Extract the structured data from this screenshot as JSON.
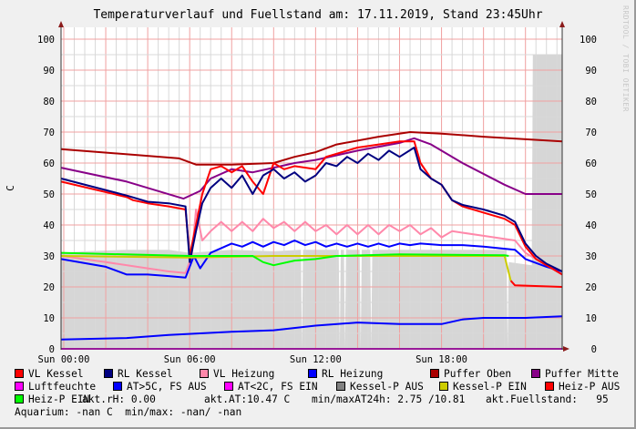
{
  "chart_data": {
    "type": "line",
    "title": "Temperaturverlauf und Fuellstand am: 17.11.2019, Stand 23:45Uhr",
    "ylabel": "C",
    "ylim": [
      0,
      100
    ],
    "xlim_hours": [
      -0.13,
      23.75
    ],
    "yticks": [
      0,
      10,
      20,
      30,
      40,
      50,
      60,
      70,
      80,
      90,
      100
    ],
    "xticks": [
      {
        "h": 0,
        "label": "Sun 00:00"
      },
      {
        "h": 6,
        "label": "Sun 06:00"
      },
      {
        "h": 12,
        "label": "Sun 12:00"
      },
      {
        "h": 18,
        "label": "Sun 18:00"
      }
    ],
    "grid": true,
    "watermark": "RRDTOOL / TOBI OETIKER",
    "area": {
      "name": "Kessel-P AUS",
      "color": "#d6d6d6",
      "points": [
        [
          -0.13,
          31
        ],
        [
          1,
          31.5
        ],
        [
          3,
          32
        ],
        [
          5,
          32
        ],
        [
          6,
          31
        ],
        [
          8,
          32
        ],
        [
          10,
          31.5
        ],
        [
          11.3,
          32
        ],
        [
          11.35,
          0
        ],
        [
          11.4,
          32
        ],
        [
          13.1,
          32
        ],
        [
          13.15,
          0
        ],
        [
          13.2,
          32
        ],
        [
          13.35,
          32
        ],
        [
          13.4,
          0
        ],
        [
          13.45,
          32
        ],
        [
          14.1,
          32
        ],
        [
          14.15,
          0
        ],
        [
          14.2,
          32
        ],
        [
          14.6,
          32
        ],
        [
          14.65,
          0
        ],
        [
          14.7,
          32
        ],
        [
          21.1,
          32
        ],
        [
          21.15,
          0
        ],
        [
          21.2,
          28
        ],
        [
          22.3,
          27
        ],
        [
          22.35,
          95
        ],
        [
          23.75,
          95
        ]
      ]
    },
    "series": [
      {
        "name": "Puffer Oben",
        "color": "#aa0000",
        "points": [
          [
            -0.13,
            64.5
          ],
          [
            5.5,
            61.5
          ],
          [
            6.3,
            59.5
          ],
          [
            8,
            59.5
          ],
          [
            10,
            60
          ],
          [
            11,
            62
          ],
          [
            12,
            63.5
          ],
          [
            13,
            66
          ],
          [
            15,
            68.5
          ],
          [
            16.5,
            70
          ],
          [
            18,
            69.5
          ],
          [
            20,
            68.5
          ],
          [
            23.75,
            67
          ]
        ]
      },
      {
        "name": "Puffer Mitte",
        "color": "#880088",
        "points": [
          [
            -0.13,
            58.5
          ],
          [
            3,
            54
          ],
          [
            5.7,
            48.5
          ],
          [
            6.5,
            51
          ],
          [
            7,
            55
          ],
          [
            8,
            58
          ],
          [
            9,
            57
          ],
          [
            10,
            58.5
          ],
          [
            11,
            60
          ],
          [
            12,
            61
          ],
          [
            13,
            62.5
          ],
          [
            14,
            64
          ],
          [
            16,
            66.5
          ],
          [
            16.7,
            68
          ],
          [
            17.5,
            66
          ],
          [
            19,
            60
          ],
          [
            21,
            53
          ],
          [
            22,
            50
          ],
          [
            23.75,
            50
          ]
        ]
      },
      {
        "name": "VL Heizung",
        "color": "#ff88aa",
        "points": [
          [
            -0.13,
            30
          ],
          [
            2,
            28
          ],
          [
            4,
            26
          ],
          [
            5,
            25
          ],
          [
            5.8,
            24.5
          ],
          [
            6.1,
            30
          ],
          [
            6.3,
            45
          ],
          [
            6.6,
            35
          ],
          [
            7,
            38
          ],
          [
            7.5,
            41
          ],
          [
            8,
            38
          ],
          [
            8.5,
            41
          ],
          [
            9,
            38
          ],
          [
            9.5,
            42
          ],
          [
            10,
            39
          ],
          [
            10.5,
            41
          ],
          [
            11,
            38
          ],
          [
            11.5,
            41
          ],
          [
            12,
            38
          ],
          [
            12.5,
            40
          ],
          [
            13,
            37
          ],
          [
            13.5,
            40
          ],
          [
            14,
            37
          ],
          [
            14.5,
            40
          ],
          [
            15,
            37
          ],
          [
            15.5,
            40
          ],
          [
            16,
            38
          ],
          [
            16.5,
            40
          ],
          [
            17,
            37
          ],
          [
            17.5,
            39
          ],
          [
            18,
            36
          ],
          [
            18.5,
            38
          ],
          [
            20,
            36.5
          ],
          [
            21.5,
            35
          ],
          [
            22,
            31
          ],
          [
            23,
            27
          ],
          [
            23.75,
            24
          ]
        ]
      },
      {
        "name": "RL Heizung",
        "color": "#0000ff",
        "points": [
          [
            -0.13,
            29
          ],
          [
            2,
            26.5
          ],
          [
            3,
            24
          ],
          [
            4,
            24
          ],
          [
            5,
            23.5
          ],
          [
            5.8,
            23
          ],
          [
            6.2,
            30
          ],
          [
            6.5,
            26
          ],
          [
            7,
            31
          ],
          [
            8,
            34
          ],
          [
            8.5,
            33
          ],
          [
            9,
            34.5
          ],
          [
            9.5,
            33
          ],
          [
            10,
            34.5
          ],
          [
            10.5,
            33.5
          ],
          [
            11,
            35
          ],
          [
            11.5,
            33.5
          ],
          [
            12,
            34.5
          ],
          [
            12.5,
            33
          ],
          [
            13,
            34
          ],
          [
            13.5,
            33
          ],
          [
            14,
            34
          ],
          [
            14.5,
            33
          ],
          [
            15,
            34
          ],
          [
            15.5,
            33
          ],
          [
            16,
            34
          ],
          [
            16.5,
            33.5
          ],
          [
            17,
            34
          ],
          [
            18,
            33.5
          ],
          [
            19,
            33.5
          ],
          [
            20,
            33
          ],
          [
            21.5,
            32
          ],
          [
            22,
            29
          ],
          [
            23,
            26.5
          ],
          [
            23.75,
            25
          ]
        ]
      },
      {
        "name": "VL Kessel",
        "color": "#ff0000",
        "points": [
          [
            -0.13,
            54
          ],
          [
            3,
            49
          ],
          [
            3.3,
            48
          ],
          [
            4,
            47
          ],
          [
            5,
            46
          ],
          [
            5.8,
            45
          ],
          [
            6.0,
            30
          ],
          [
            6.3,
            40
          ],
          [
            6.6,
            50
          ],
          [
            7,
            58
          ],
          [
            7.5,
            59
          ],
          [
            8,
            57
          ],
          [
            8.5,
            59
          ],
          [
            9,
            54
          ],
          [
            9.5,
            50
          ],
          [
            10,
            60
          ],
          [
            10.5,
            58
          ],
          [
            11,
            59
          ],
          [
            12,
            58
          ],
          [
            12.5,
            62
          ],
          [
            13,
            63
          ],
          [
            14,
            65
          ],
          [
            15,
            66
          ],
          [
            16,
            67
          ],
          [
            16.7,
            67
          ],
          [
            17,
            60
          ],
          [
            17.5,
            55
          ],
          [
            18,
            53
          ],
          [
            18.5,
            48
          ],
          [
            19,
            46
          ],
          [
            20,
            44
          ],
          [
            21,
            42
          ],
          [
            21.5,
            40
          ],
          [
            22,
            33
          ],
          [
            22.5,
            29
          ],
          [
            23,
            27
          ],
          [
            23.75,
            24
          ]
        ]
      },
      {
        "name": "RL Kessel",
        "color": "#000080",
        "points": [
          [
            -0.13,
            55
          ],
          [
            3,
            49.5
          ],
          [
            4,
            47.5
          ],
          [
            5,
            47
          ],
          [
            5.8,
            46
          ],
          [
            6.0,
            28
          ],
          [
            6.3,
            38
          ],
          [
            6.6,
            47
          ],
          [
            7,
            52
          ],
          [
            7.5,
            55
          ],
          [
            8,
            52
          ],
          [
            8.5,
            56
          ],
          [
            9,
            50
          ],
          [
            9.5,
            56
          ],
          [
            10,
            58
          ],
          [
            10.5,
            55
          ],
          [
            11,
            57
          ],
          [
            11.5,
            54
          ],
          [
            12,
            56
          ],
          [
            12.5,
            60
          ],
          [
            13,
            59
          ],
          [
            13.5,
            62
          ],
          [
            14,
            60
          ],
          [
            14.5,
            63
          ],
          [
            15,
            61
          ],
          [
            15.5,
            64
          ],
          [
            16,
            62
          ],
          [
            16.7,
            65
          ],
          [
            17,
            58
          ],
          [
            17.5,
            55
          ],
          [
            18,
            53
          ],
          [
            18.5,
            48
          ],
          [
            19,
            46.5
          ],
          [
            20,
            45
          ],
          [
            21,
            43
          ],
          [
            21.5,
            41
          ],
          [
            22,
            34
          ],
          [
            22.5,
            30
          ],
          [
            23,
            27.5
          ],
          [
            23.75,
            25
          ]
        ]
      },
      {
        "name": "AT>5C, FS AUS",
        "color": "#0000ff",
        "points": [
          [
            -0.13,
            3
          ],
          [
            3,
            3.5
          ],
          [
            5,
            4.5
          ],
          [
            8,
            5.5
          ],
          [
            10,
            6
          ],
          [
            12,
            7.5
          ],
          [
            14,
            8.5
          ],
          [
            16,
            8
          ],
          [
            18,
            8
          ],
          [
            19,
            9.5
          ],
          [
            20,
            10
          ],
          [
            22,
            10
          ],
          [
            23.75,
            10.5
          ]
        ]
      },
      {
        "name": "Kessel-P EIN",
        "color": "#cccc00",
        "points": [
          [
            -0.13,
            30
          ],
          [
            6,
            29.5
          ],
          [
            10,
            30
          ],
          [
            21,
            30
          ],
          [
            21.3,
            22
          ]
        ]
      },
      {
        "name": "Heiz-P EIN",
        "color": "#00ff00",
        "points": [
          [
            -0.13,
            31
          ],
          [
            6,
            30
          ],
          [
            9,
            30
          ],
          [
            9.5,
            28
          ],
          [
            10,
            27
          ],
          [
            11,
            28.5
          ],
          [
            12,
            29
          ],
          [
            13,
            30
          ],
          [
            16,
            30.5
          ],
          [
            21,
            30.2
          ],
          [
            21.2,
            30
          ]
        ]
      },
      {
        "name": "Heiz-P AUS",
        "color": "#ff0000",
        "points": [
          [
            21.3,
            22
          ],
          [
            21.5,
            20.5
          ],
          [
            23.75,
            20
          ]
        ]
      },
      {
        "name": "Luftfeuchte",
        "color": "#ff00ff",
        "points": [
          [
            -0.13,
            0
          ],
          [
            23.75,
            0
          ]
        ]
      }
    ]
  },
  "legend": [
    {
      "label": "VL Kessel",
      "color": "#ff0000"
    },
    {
      "label": "RL Kessel",
      "color": "#000080"
    },
    {
      "label": "VL Heizung",
      "color": "#ff88aa"
    },
    {
      "label": "RL Heizung",
      "color": "#0000ff"
    },
    {
      "label": "Puffer Oben",
      "color": "#aa0000"
    },
    {
      "label": "Puffer Mitte",
      "color": "#880088"
    },
    {
      "label": "Luftfeuchte",
      "color": "#ff00ff"
    },
    {
      "label": "AT>5C, FS AUS",
      "color": "#0000ff"
    },
    {
      "label": "AT<2C, FS EIN",
      "color": "#ff00ff"
    },
    {
      "label": "Kessel-P AUS",
      "color": "#808080"
    },
    {
      "label": "Kessel-P EIN",
      "color": "#cccc00"
    },
    {
      "label": "Heiz-P AUS",
      "color": "#ff0000"
    },
    {
      "label": "Heiz-P EIN",
      "color": "#00ff00"
    }
  ],
  "stats": {
    "rh": "akt.rH: 0.00",
    "at": "akt.AT:10.47 C",
    "minmax": "min/maxAT24h: 2.75 /10.81",
    "fuellstand": "akt.Fuellstand:   95",
    "aquarium": "Aquarium: -nan C  min/max: -nan/ -nan"
  }
}
